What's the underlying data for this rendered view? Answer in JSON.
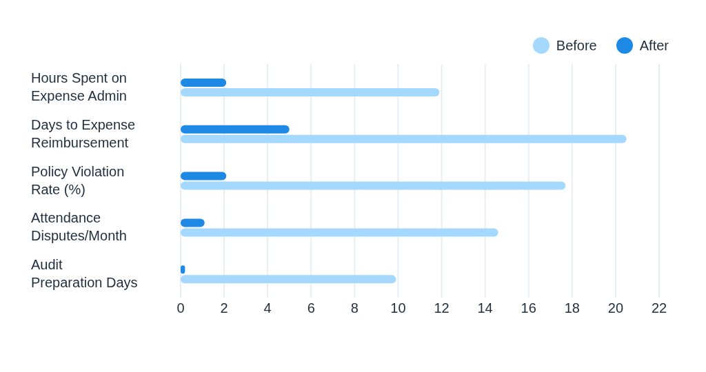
{
  "chart_data": {
    "type": "bar",
    "orientation": "horizontal",
    "categories": [
      "Hours Spent on Expense Admin",
      "Days to Expense Reimbursement",
      "Policy Violation Rate (%)",
      "Attendance Disputes/Month",
      "Audit Preparation Days"
    ],
    "series": [
      {
        "name": "Before",
        "color": "#a5d8ff",
        "values": [
          11.9,
          20.5,
          17.7,
          14.6,
          9.9
        ]
      },
      {
        "name": "After",
        "color": "#1e88e5",
        "values": [
          2.1,
          5,
          2.1,
          1.1,
          0.2
        ]
      }
    ],
    "xlim": [
      0,
      22
    ],
    "xticks": [
      0,
      2,
      4,
      6,
      8,
      10,
      12,
      14,
      16,
      18,
      20,
      22
    ],
    "grid": "x",
    "legend": "top right"
  }
}
